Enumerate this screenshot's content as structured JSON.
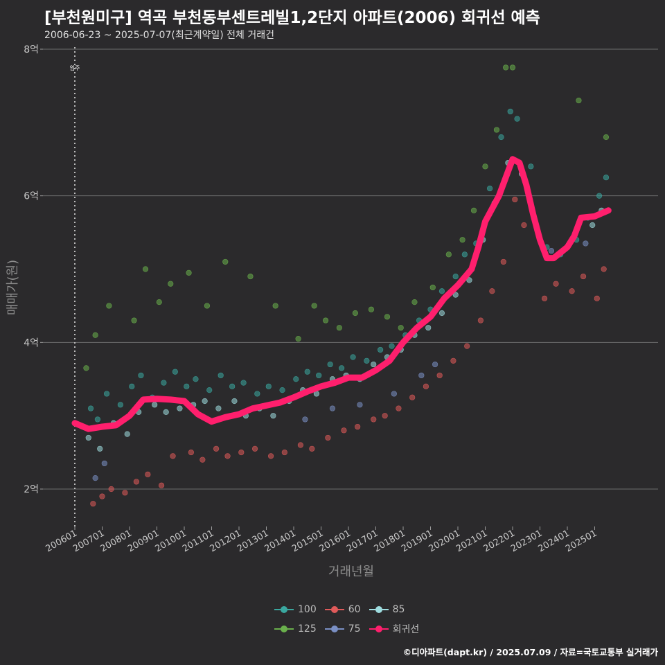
{
  "title": "[부천원미구] 역곡 부천동부센트레빌1,2단지 아파트(2006) 회귀선 예측",
  "subtitle": "2006-06-23 ~ 2025-07-07(최근계약일) 전체 거래건",
  "caption": "©디아파트(dapt.kr) / 2025.07.09 / 자료=국토교통부 실거래가",
  "chart_data": {
    "type": "scatter",
    "title": "[부천원미구] 역곡 부천동부센트레빌1,2단지 아파트(2006) 회귀선 예측",
    "xlabel": "거래년월",
    "ylabel": "매매가(원)",
    "y_unit": "억",
    "ylim": [
      1.5,
      8.2
    ],
    "xlim": [
      "2006-01",
      "2025-10"
    ],
    "y_ticks": [
      2,
      4,
      6,
      8
    ],
    "y_tick_labels": [
      "2억",
      "4억",
      "6억",
      "8억"
    ],
    "x_tick_labels": [
      "200601",
      "200701",
      "200801",
      "200901",
      "201001",
      "201101",
      "201201",
      "201301",
      "201401",
      "201501",
      "201601",
      "201701",
      "201801",
      "201901",
      "202001",
      "202101",
      "202201",
      "202301",
      "202401",
      "202501"
    ],
    "grid": "horizontal",
    "legend_position": "bottom",
    "annotation": {
      "label": "입주",
      "x": "2006-01"
    },
    "regression_line": {
      "name": "회귀선",
      "color": "#ff1f6d",
      "points": [
        [
          "2006-01",
          2.9
        ],
        [
          "2006-07",
          2.82
        ],
        [
          "2007-01",
          2.85
        ],
        [
          "2007-07",
          2.87
        ],
        [
          "2008-01",
          3.0
        ],
        [
          "2008-07",
          3.22
        ],
        [
          "2009-01",
          3.23
        ],
        [
          "2009-07",
          3.22
        ],
        [
          "2010-01",
          3.2
        ],
        [
          "2010-07",
          3.02
        ],
        [
          "2011-01",
          2.92
        ],
        [
          "2011-07",
          2.98
        ],
        [
          "2012-01",
          3.02
        ],
        [
          "2012-07",
          3.1
        ],
        [
          "2013-01",
          3.14
        ],
        [
          "2013-07",
          3.18
        ],
        [
          "2014-01",
          3.25
        ],
        [
          "2014-07",
          3.33
        ],
        [
          "2015-01",
          3.4
        ],
        [
          "2015-07",
          3.45
        ],
        [
          "2016-01",
          3.52
        ],
        [
          "2016-07",
          3.52
        ],
        [
          "2017-01",
          3.62
        ],
        [
          "2017-07",
          3.75
        ],
        [
          "2018-01",
          4.0
        ],
        [
          "2018-07",
          4.2
        ],
        [
          "2019-01",
          4.35
        ],
        [
          "2019-07",
          4.6
        ],
        [
          "2020-01",
          4.78
        ],
        [
          "2020-07",
          5.0
        ],
        [
          "2020-10",
          5.3
        ],
        [
          "2021-01",
          5.65
        ],
        [
          "2021-07",
          6.0
        ],
        [
          "2022-01",
          6.5
        ],
        [
          "2022-04",
          6.45
        ],
        [
          "2022-07",
          6.15
        ],
        [
          "2022-10",
          5.75
        ],
        [
          "2023-01",
          5.4
        ],
        [
          "2023-04",
          5.15
        ],
        [
          "2023-07",
          5.15
        ],
        [
          "2024-01",
          5.3
        ],
        [
          "2024-04",
          5.45
        ],
        [
          "2024-07",
          5.7
        ],
        [
          "2025-01",
          5.72
        ],
        [
          "2025-07",
          5.8
        ]
      ]
    },
    "series": [
      {
        "name": "100",
        "color": "#3aa8a0",
        "points": [
          [
            "2006-08",
            3.1
          ],
          [
            "2006-11",
            2.95
          ],
          [
            "2007-03",
            3.3
          ],
          [
            "2007-09",
            3.15
          ],
          [
            "2008-02",
            3.4
          ],
          [
            "2008-06",
            3.55
          ],
          [
            "2008-11",
            3.25
          ],
          [
            "2009-04",
            3.45
          ],
          [
            "2009-09",
            3.6
          ],
          [
            "2010-02",
            3.4
          ],
          [
            "2010-06",
            3.5
          ],
          [
            "2010-12",
            3.35
          ],
          [
            "2011-05",
            3.55
          ],
          [
            "2011-10",
            3.4
          ],
          [
            "2012-03",
            3.45
          ],
          [
            "2012-09",
            3.3
          ],
          [
            "2013-02",
            3.4
          ],
          [
            "2013-08",
            3.35
          ],
          [
            "2014-02",
            3.5
          ],
          [
            "2014-07",
            3.6
          ],
          [
            "2014-12",
            3.55
          ],
          [
            "2015-05",
            3.7
          ],
          [
            "2015-10",
            3.65
          ],
          [
            "2016-03",
            3.8
          ],
          [
            "2016-09",
            3.75
          ],
          [
            "2017-03",
            3.9
          ],
          [
            "2017-08",
            3.95
          ],
          [
            "2018-02",
            4.1
          ],
          [
            "2018-08",
            4.3
          ],
          [
            "2019-01",
            4.45
          ],
          [
            "2019-06",
            4.7
          ],
          [
            "2019-12",
            4.9
          ],
          [
            "2020-04",
            5.2
          ],
          [
            "2020-09",
            5.35
          ],
          [
            "2021-03",
            6.1
          ],
          [
            "2021-08",
            6.8
          ],
          [
            "2021-12",
            7.15
          ],
          [
            "2022-03",
            7.05
          ],
          [
            "2022-09",
            6.4
          ],
          [
            "2023-04",
            5.3
          ],
          [
            "2023-10",
            5.2
          ],
          [
            "2024-05",
            5.4
          ],
          [
            "2024-10",
            5.7
          ],
          [
            "2025-03",
            6.0
          ],
          [
            "2025-06",
            6.25
          ]
        ]
      },
      {
        "name": "125",
        "color": "#6ab04c",
        "points": [
          [
            "2006-06",
            3.65
          ],
          [
            "2006-10",
            4.1
          ],
          [
            "2007-04",
            4.5
          ],
          [
            "2008-03",
            4.3
          ],
          [
            "2008-08",
            5.0
          ],
          [
            "2009-02",
            4.55
          ],
          [
            "2009-07",
            4.8
          ],
          [
            "2010-03",
            4.95
          ],
          [
            "2010-11",
            4.5
          ],
          [
            "2011-07",
            5.1
          ],
          [
            "2012-06",
            4.9
          ],
          [
            "2013-05",
            4.5
          ],
          [
            "2014-03",
            4.05
          ],
          [
            "2014-10",
            4.5
          ],
          [
            "2015-03",
            4.3
          ],
          [
            "2015-09",
            4.2
          ],
          [
            "2016-04",
            4.4
          ],
          [
            "2016-11",
            4.45
          ],
          [
            "2017-06",
            4.35
          ],
          [
            "2017-12",
            4.2
          ],
          [
            "2018-06",
            4.55
          ],
          [
            "2019-02",
            4.75
          ],
          [
            "2019-09",
            5.2
          ],
          [
            "2020-03",
            5.4
          ],
          [
            "2020-08",
            5.8
          ],
          [
            "2021-01",
            6.4
          ],
          [
            "2021-06",
            6.9
          ],
          [
            "2021-10",
            7.75
          ],
          [
            "2022-01",
            7.75
          ],
          [
            "2024-06",
            7.3
          ],
          [
            "2025-06",
            6.8
          ]
        ]
      },
      {
        "name": "60",
        "color": "#e05a5a",
        "points": [
          [
            "2006-09",
            1.8
          ],
          [
            "2007-01",
            1.9
          ],
          [
            "2007-05",
            2.0
          ],
          [
            "2007-11",
            1.95
          ],
          [
            "2008-04",
            2.1
          ],
          [
            "2008-09",
            2.2
          ],
          [
            "2009-03",
            2.05
          ],
          [
            "2009-08",
            2.45
          ],
          [
            "2010-04",
            2.5
          ],
          [
            "2010-09",
            2.4
          ],
          [
            "2011-03",
            2.55
          ],
          [
            "2011-08",
            2.45
          ],
          [
            "2012-02",
            2.5
          ],
          [
            "2012-08",
            2.55
          ],
          [
            "2013-03",
            2.45
          ],
          [
            "2013-09",
            2.5
          ],
          [
            "2014-04",
            2.6
          ],
          [
            "2014-09",
            2.55
          ],
          [
            "2015-04",
            2.7
          ],
          [
            "2015-11",
            2.8
          ],
          [
            "2016-05",
            2.85
          ],
          [
            "2016-12",
            2.95
          ],
          [
            "2017-05",
            3.0
          ],
          [
            "2017-11",
            3.1
          ],
          [
            "2018-05",
            3.25
          ],
          [
            "2018-11",
            3.4
          ],
          [
            "2019-05",
            3.55
          ],
          [
            "2019-11",
            3.75
          ],
          [
            "2020-05",
            3.95
          ],
          [
            "2020-11",
            4.3
          ],
          [
            "2021-04",
            4.7
          ],
          [
            "2021-09",
            5.1
          ],
          [
            "2022-02",
            5.95
          ],
          [
            "2022-06",
            5.6
          ],
          [
            "2023-03",
            4.6
          ],
          [
            "2023-08",
            4.8
          ],
          [
            "2024-03",
            4.7
          ],
          [
            "2024-08",
            4.9
          ],
          [
            "2025-02",
            4.6
          ],
          [
            "2025-05",
            5.0
          ]
        ]
      },
      {
        "name": "75",
        "color": "#7a8fc4",
        "points": [
          [
            "2006-10",
            2.15
          ],
          [
            "2007-02",
            2.35
          ],
          [
            "2014-06",
            2.95
          ],
          [
            "2015-06",
            3.1
          ],
          [
            "2016-06",
            3.15
          ],
          [
            "2017-09",
            3.3
          ],
          [
            "2018-09",
            3.55
          ],
          [
            "2019-03",
            3.7
          ],
          [
            "2023-06",
            5.25
          ],
          [
            "2024-09",
            5.35
          ]
        ]
      },
      {
        "name": "85",
        "color": "#9fdde0",
        "points": [
          [
            "2006-07",
            2.7
          ],
          [
            "2006-12",
            2.55
          ],
          [
            "2007-06",
            2.9
          ],
          [
            "2007-12",
            2.75
          ],
          [
            "2008-05",
            3.05
          ],
          [
            "2008-12",
            3.15
          ],
          [
            "2009-05",
            3.05
          ],
          [
            "2009-11",
            3.1
          ],
          [
            "2010-05",
            3.15
          ],
          [
            "2010-10",
            3.2
          ],
          [
            "2011-04",
            3.1
          ],
          [
            "2011-11",
            3.2
          ],
          [
            "2012-04",
            3.0
          ],
          [
            "2012-10",
            3.1
          ],
          [
            "2013-04",
            3.0
          ],
          [
            "2013-11",
            3.2
          ],
          [
            "2014-05",
            3.35
          ],
          [
            "2014-11",
            3.3
          ],
          [
            "2015-06",
            3.5
          ],
          [
            "2015-12",
            3.55
          ],
          [
            "2016-06",
            3.5
          ],
          [
            "2016-12",
            3.7
          ],
          [
            "2017-06",
            3.8
          ],
          [
            "2017-12",
            3.9
          ],
          [
            "2018-06",
            4.1
          ],
          [
            "2018-12",
            4.2
          ],
          [
            "2019-06",
            4.4
          ],
          [
            "2019-12",
            4.65
          ],
          [
            "2020-06",
            4.85
          ],
          [
            "2020-12",
            5.4
          ],
          [
            "2021-05",
            5.9
          ],
          [
            "2021-11",
            6.45
          ],
          [
            "2022-05",
            6.3
          ],
          [
            "2024-12",
            5.6
          ],
          [
            "2025-04",
            5.8
          ]
        ]
      }
    ]
  }
}
